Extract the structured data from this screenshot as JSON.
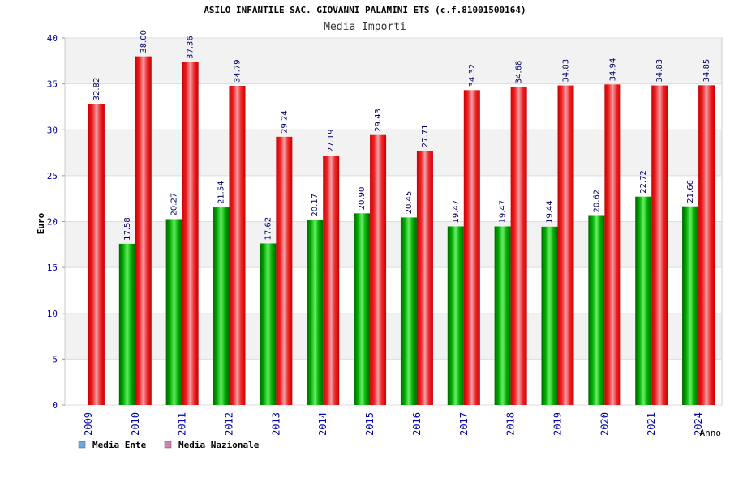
{
  "chart_data": {
    "type": "bar",
    "title": "ASILO INFANTILE SAC. GIOVANNI PALAMINI ETS (c.f.81001500164)",
    "subtitle": "Media Importi",
    "ylabel": "Euro",
    "xlabel": "Anno",
    "ylim": [
      0,
      40
    ],
    "yticks": [
      0,
      5,
      10,
      15,
      20,
      25,
      30,
      35,
      40
    ],
    "grid": true,
    "legend_position": "bottom-left",
    "categories": [
      "2009",
      "2010",
      "2011",
      "2012",
      "2013",
      "2014",
      "2015",
      "2016",
      "2017",
      "2018",
      "2019",
      "2020",
      "2021",
      "2024"
    ],
    "series": [
      {
        "name": "Media Ente",
        "color": "#00bb00",
        "legend_color": "#6fa8dc",
        "values": [
          null,
          17.58,
          20.27,
          21.54,
          17.62,
          20.17,
          20.9,
          20.45,
          19.47,
          19.47,
          19.44,
          20.62,
          22.72,
          21.66
        ],
        "labels": [
          null,
          "17.58",
          "20.27",
          "21.54",
          "17.62",
          "20.17",
          "20.90",
          "20.45",
          "19.47",
          "19.47",
          "19.44",
          "20.62",
          "22.72",
          "21.66"
        ]
      },
      {
        "name": "Media Nazionale",
        "color": "#ee1c25",
        "legend_color": "#d580b0",
        "values": [
          32.82,
          38.0,
          37.36,
          34.79,
          29.24,
          27.19,
          29.43,
          27.71,
          34.32,
          34.68,
          34.83,
          34.94,
          34.83,
          34.85
        ],
        "labels": [
          "32.82",
          "38.00",
          "37.36",
          "34.79",
          "29.24",
          "27.19",
          "29.43",
          "27.71",
          "34.32",
          "34.68",
          "34.83",
          "34.94",
          "34.83",
          "34.85"
        ]
      }
    ]
  }
}
